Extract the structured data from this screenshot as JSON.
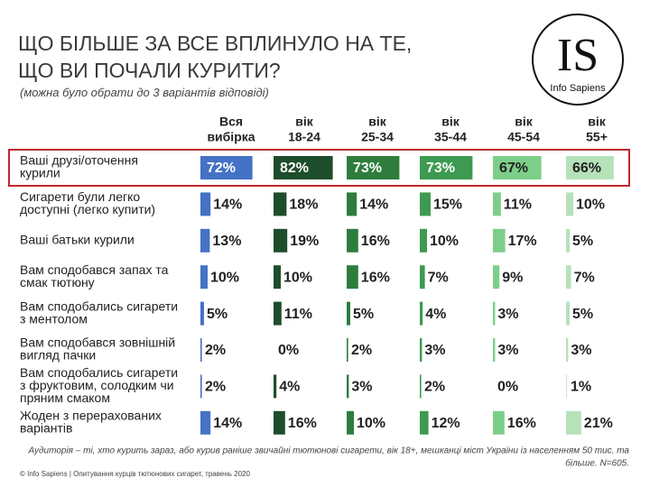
{
  "logo": {
    "mark": "IS",
    "name": "Info Sapiens"
  },
  "chart_data": {
    "type": "bar",
    "title": [
      "ЩО БІЛЬШЕ ЗА ВСЕ ВПЛИНУЛО НА ТЕ,",
      "ЩО ВИ ПОЧАЛИ КУРИТИ?"
    ],
    "subtitle": "(можна було обрати до 3 варіантів відповіді)",
    "footnote": [
      "Аудиторія – ті, хто курить зараз, або курив раніше звичайні тютюнові сигарети, вік 18+, мешканці міст України із населенням 50 тис. та",
      "більше. N=605."
    ],
    "source": "© Info Sapiens | Опитування курців тютюнових сигарет, травень 2020",
    "xlim": [
      0,
      100
    ],
    "categories": [
      [
        "Ваші друзі/оточення",
        "курили"
      ],
      [
        "Сигарети були легко",
        "доступні (легко купити)"
      ],
      [
        "Ваші батьки курили"
      ],
      [
        "Вам сподобався запах та",
        "смак тютюну"
      ],
      [
        "Вам сподобались сигарети",
        "з ментолом"
      ],
      [
        "Вам сподобався зовнішній",
        "вигляд пачки"
      ],
      [
        "Вам сподобались сигарети",
        "з фруктовим, солодким чи",
        "пряним смаком"
      ],
      [
        "Жоден з перерахованих",
        "варіантів"
      ]
    ],
    "series": [
      {
        "name": [
          "Вся",
          "вибірка"
        ],
        "color": "#4472c4",
        "values": [
          72,
          14,
          13,
          10,
          5,
          2,
          2,
          14
        ],
        "value_labels": [
          "72%",
          "14%",
          "13%",
          "10%",
          "5%",
          "2%",
          "2%",
          "14%"
        ]
      },
      {
        "name": [
          "вік",
          "18-24"
        ],
        "color": "#1e4d2b",
        "values": [
          82,
          18,
          19,
          10,
          11,
          0,
          4,
          16
        ],
        "value_labels": [
          "82%",
          "18%",
          "19%",
          "10%",
          "11%",
          "0%",
          "4%",
          "16%"
        ]
      },
      {
        "name": [
          "вік",
          "25-34"
        ],
        "color": "#2e7d3c",
        "values": [
          73,
          14,
          16,
          16,
          5,
          2,
          3,
          10
        ],
        "value_labels": [
          "73%",
          "14%",
          "16%",
          "16%",
          "5%",
          "2%",
          "3%",
          "10%"
        ]
      },
      {
        "name": [
          "вік",
          "35-44"
        ],
        "color": "#3d9a50",
        "values": [
          73,
          15,
          10,
          7,
          4,
          3,
          2,
          12
        ],
        "value_labels": [
          "73%",
          "15%",
          "10%",
          "7%",
          "4%",
          "3%",
          "2%",
          "12%"
        ]
      },
      {
        "name": [
          "вік",
          "45-54"
        ],
        "color": "#7ccf88",
        "values": [
          67,
          11,
          17,
          9,
          3,
          3,
          0,
          16
        ],
        "value_labels": [
          "67%",
          "11%",
          "17%",
          "9%",
          "3%",
          "3%",
          "0%",
          "16%"
        ]
      },
      {
        "name": [
          "вік",
          "55+"
        ],
        "color": "#b5e2b9",
        "values": [
          66,
          10,
          5,
          7,
          5,
          3,
          1,
          21
        ],
        "value_labels": [
          "66%",
          "10%",
          "5%",
          "7%",
          "5%",
          "3%",
          "1%",
          "21%"
        ]
      }
    ]
  }
}
